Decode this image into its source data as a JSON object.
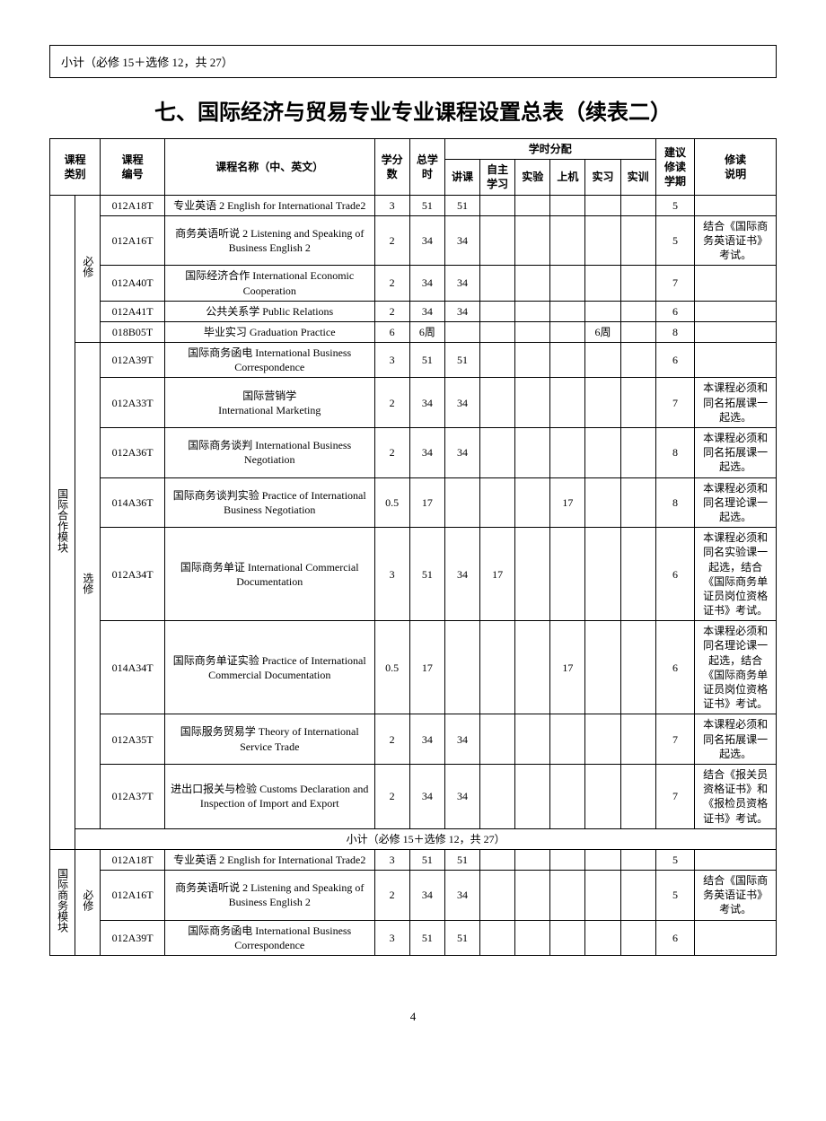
{
  "topBox": "小计（必修 15＋选修 12，共 27）",
  "title": "七、国际经济与贸易专业专业课程设置总表（续表二）",
  "pageNumber": "4",
  "header": {
    "category": "课程\n类别",
    "code": "课程\n编号",
    "name": "课程名称（中、英文）",
    "credits": "学分数",
    "totalHours": "总学时",
    "alloc": "学时分配",
    "lecture": "讲课",
    "selfStudy": "自主学习",
    "experiment": "实验",
    "computer": "上机",
    "practice": "实习",
    "training": "实训",
    "semester": "建议修读学期",
    "note": "修读\n说明"
  },
  "groups": [
    {
      "categoryLabel": "国际合作模块",
      "sections": [
        {
          "typeLabel": "必修",
          "rows": [
            {
              "code": "012A18T",
              "name": "专业英语 2  English for International Trade2",
              "credits": "3",
              "total": "51",
              "lecture": "51",
              "self": "",
              "exp": "",
              "comp": "",
              "prac": "",
              "train": "",
              "sem": "5",
              "note": ""
            },
            {
              "code": "012A16T",
              "name": "商务英语听说 2 Listening and Speaking of Business English 2",
              "credits": "2",
              "total": "34",
              "lecture": "34",
              "self": "",
              "exp": "",
              "comp": "",
              "prac": "",
              "train": "",
              "sem": "5",
              "note": "结合《国际商务英语证书》考试。"
            },
            {
              "code": "012A40T",
              "name": "国际经济合作 International Economic Cooperation",
              "credits": "2",
              "total": "34",
              "lecture": "34",
              "self": "",
              "exp": "",
              "comp": "",
              "prac": "",
              "train": "",
              "sem": "7",
              "note": ""
            },
            {
              "code": "012A41T",
              "name": "公共关系学 Public Relations",
              "credits": "2",
              "total": "34",
              "lecture": "34",
              "self": "",
              "exp": "",
              "comp": "",
              "prac": "",
              "train": "",
              "sem": "6",
              "note": ""
            },
            {
              "code": "018B05T",
              "name": "毕业实习  Graduation Practice",
              "credits": "6",
              "total": "6周",
              "lecture": "",
              "self": "",
              "exp": "",
              "comp": "",
              "prac": "6周",
              "train": "",
              "sem": "8",
              "note": ""
            }
          ]
        },
        {
          "typeLabel": "选修",
          "rows": [
            {
              "code": "012A39T",
              "name": "国际商务函电 International Business Correspondence",
              "credits": "3",
              "total": "51",
              "lecture": "51",
              "self": "",
              "exp": "",
              "comp": "",
              "prac": "",
              "train": "",
              "sem": "6",
              "note": ""
            },
            {
              "code": "012A33T",
              "name": "国际营销学\nInternational Marketing",
              "credits": "2",
              "total": "34",
              "lecture": "34",
              "self": "",
              "exp": "",
              "comp": "",
              "prac": "",
              "train": "",
              "sem": "7",
              "note": "本课程必须和同名拓展课一起选。"
            },
            {
              "code": "012A36T",
              "name": "国际商务谈判 International Business Negotiation",
              "credits": "2",
              "total": "34",
              "lecture": "34",
              "self": "",
              "exp": "",
              "comp": "",
              "prac": "",
              "train": "",
              "sem": "8",
              "note": "本课程必须和同名拓展课一起选。"
            },
            {
              "code": "014A36T",
              "name": "国际商务谈判实验 Practice of International Business Negotiation",
              "credits": "0.5",
              "total": "17",
              "lecture": "",
              "self": "",
              "exp": "",
              "comp": "17",
              "prac": "",
              "train": "",
              "sem": "8",
              "note": "本课程必须和同名理论课一起选。"
            },
            {
              "code": "012A34T",
              "name": "国际商务单证 International Commercial Documentation",
              "credits": "3",
              "total": "51",
              "lecture": "34",
              "self": "17",
              "exp": "",
              "comp": "",
              "prac": "",
              "train": "",
              "sem": "6",
              "note": "本课程必须和同名实验课一起选，结合《国际商务单证员岗位资格证书》考试。"
            },
            {
              "code": "014A34T",
              "name": "国际商务单证实验  Practice of International Commercial Documentation",
              "credits": "0.5",
              "total": "17",
              "lecture": "",
              "self": "",
              "exp": "",
              "comp": "17",
              "prac": "",
              "train": "",
              "sem": "6",
              "note": "本课程必须和同名理论课一起选，结合《国际商务单证员岗位资格证书》考试。"
            },
            {
              "code": "012A35T",
              "name": "国际服务贸易学  Theory of International Service Trade",
              "credits": "2",
              "total": "34",
              "lecture": "34",
              "self": "",
              "exp": "",
              "comp": "",
              "prac": "",
              "train": "",
              "sem": "7",
              "note": "本课程必须和同名拓展课一起选。"
            },
            {
              "code": "012A37T",
              "name": "进出口报关与检验  Customs Declaration and Inspection of Import and Export",
              "credits": "2",
              "total": "34",
              "lecture": "34",
              "self": "",
              "exp": "",
              "comp": "",
              "prac": "",
              "train": "",
              "sem": "7",
              "note": "结合《报关员资格证书》和《报检员资格证书》考试。"
            }
          ]
        }
      ],
      "subtotal": "小计（必修 15＋选修 12，共 27）"
    },
    {
      "categoryLabel": "国际商务模块",
      "sections": [
        {
          "typeLabel": "必修",
          "rows": [
            {
              "code": "012A18T",
              "name": "专业英语 2  English for International Trade2",
              "credits": "3",
              "total": "51",
              "lecture": "51",
              "self": "",
              "exp": "",
              "comp": "",
              "prac": "",
              "train": "",
              "sem": "5",
              "note": ""
            },
            {
              "code": "012A16T",
              "name": "商务英语听说 2 Listening and Speaking of Business English 2",
              "credits": "2",
              "total": "34",
              "lecture": "34",
              "self": "",
              "exp": "",
              "comp": "",
              "prac": "",
              "train": "",
              "sem": "5",
              "note": "结合《国际商务英语证书》考试。"
            },
            {
              "code": "012A39T",
              "name": "国际商务函电 International Business Correspondence",
              "credits": "3",
              "total": "51",
              "lecture": "51",
              "self": "",
              "exp": "",
              "comp": "",
              "prac": "",
              "train": "",
              "sem": "6",
              "note": ""
            }
          ]
        }
      ],
      "subtotal": null
    }
  ]
}
